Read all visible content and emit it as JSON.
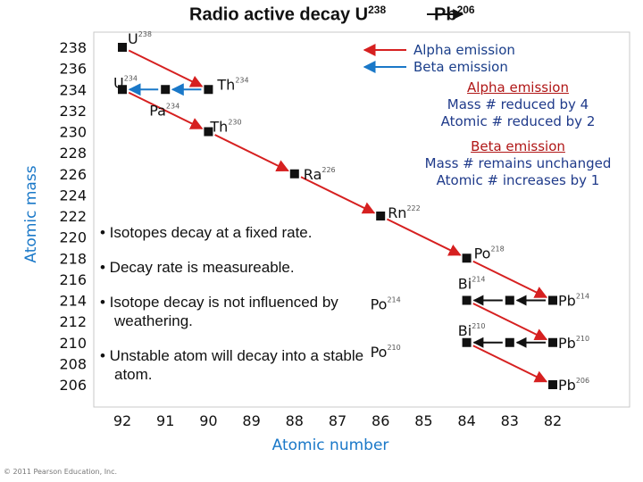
{
  "title": {
    "main": "Radio active decay U",
    "main_sup": "238",
    "end": "Pb",
    "end_sup": "206"
  },
  "axes": {
    "y_label": "Atomic mass",
    "x_label": "Atomic number",
    "y_ticks": [
      "238",
      "236",
      "234",
      "232",
      "230",
      "228",
      "226",
      "224",
      "222",
      "220",
      "218",
      "216",
      "214",
      "212",
      "210",
      "208",
      "206"
    ],
    "x_ticks": [
      "92",
      "91",
      "90",
      "89",
      "88",
      "87",
      "86",
      "85",
      "84",
      "83",
      "82"
    ]
  },
  "legend": {
    "alpha": "Alpha emission",
    "beta": "Beta emission",
    "alpha_color": "#d62020",
    "beta_color": "#1a78c8"
  },
  "info": {
    "alpha_header": "Alpha emission",
    "alpha_line1": "Mass # reduced by 4",
    "alpha_line2": "Atomic # reduced by 2",
    "beta_header": "Beta emission",
    "beta_line1": "Mass # remains unchanged",
    "beta_line2": "Atomic # increases by 1"
  },
  "bullets": [
    "• Isotopes decay at a fixed rate.",
    "• Decay rate is measureable.",
    "• Isotope decay is not influenced by weathering.",
    "• Unstable atom will decay into a stable atom."
  ],
  "copyright": "© 2011 Pearson Education, Inc.",
  "chart_data": {
    "type": "scatter",
    "xlabel": "Atomic number",
    "ylabel": "Atomic mass",
    "xlim": [
      92,
      82
    ],
    "ylim": [
      206,
      238
    ],
    "points": [
      {
        "element": "U",
        "mass": 238,
        "number": 92
      },
      {
        "element": "Th",
        "mass": 234,
        "number": 90
      },
      {
        "element": "Pa",
        "mass": 234,
        "number": 91
      },
      {
        "element": "U",
        "mass": 234,
        "number": 92
      },
      {
        "element": "Th",
        "mass": 230,
        "number": 90
      },
      {
        "element": "Ra",
        "mass": 226,
        "number": 88
      },
      {
        "element": "Rn",
        "mass": 222,
        "number": 86
      },
      {
        "element": "Po",
        "mass": 218,
        "number": 84
      },
      {
        "element": "Pb",
        "mass": 214,
        "number": 82
      },
      {
        "element": "Bi",
        "mass": 214,
        "number": 83
      },
      {
        "element": "Po",
        "mass": 214,
        "number": 84
      },
      {
        "element": "Pb",
        "mass": 210,
        "number": 82
      },
      {
        "element": "Bi",
        "mass": 210,
        "number": 83
      },
      {
        "element": "Po",
        "mass": 210,
        "number": 84
      },
      {
        "element": "Pb",
        "mass": 206,
        "number": 82
      }
    ],
    "alpha_decays": [
      {
        "from": [
          92,
          238
        ],
        "to": [
          90,
          234
        ]
      },
      {
        "from": [
          92,
          234
        ],
        "to": [
          90,
          230
        ]
      },
      {
        "from": [
          90,
          230
        ],
        "to": [
          88,
          226
        ]
      },
      {
        "from": [
          88,
          226
        ],
        "to": [
          86,
          222
        ]
      },
      {
        "from": [
          86,
          222
        ],
        "to": [
          84,
          218
        ]
      },
      {
        "from": [
          84,
          218
        ],
        "to": [
          82,
          214
        ]
      },
      {
        "from": [
          84,
          214
        ],
        "to": [
          82,
          210
        ]
      },
      {
        "from": [
          84,
          210
        ],
        "to": [
          82,
          206
        ]
      }
    ],
    "beta_decays": [
      {
        "from": [
          90,
          234
        ],
        "to": [
          91,
          234
        ]
      },
      {
        "from": [
          91,
          234
        ],
        "to": [
          92,
          234
        ]
      },
      {
        "from": [
          82,
          214
        ],
        "to": [
          83,
          214
        ]
      },
      {
        "from": [
          83,
          214
        ],
        "to": [
          84,
          214
        ]
      },
      {
        "from": [
          82,
          210
        ],
        "to": [
          83,
          210
        ]
      },
      {
        "from": [
          83,
          210
        ],
        "to": [
          84,
          210
        ]
      }
    ]
  }
}
